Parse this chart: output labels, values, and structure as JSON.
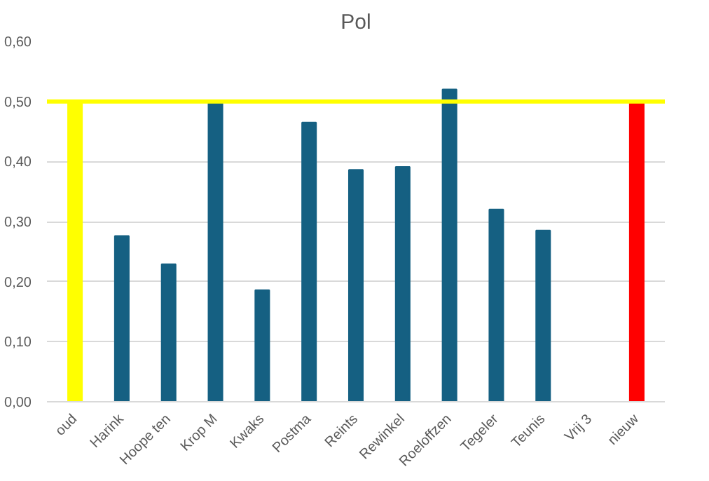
{
  "chart_data": {
    "type": "bar",
    "title": "Pol",
    "categories": [
      "oud",
      "Harink",
      "Hoope ten",
      "Krop M",
      "Kwaks",
      "Postma",
      "Reints",
      "Rewinkel",
      "Roeloffzen",
      "Tegeler",
      "Teunis",
      "Vrij 3",
      "nieuw"
    ],
    "series": [
      {
        "colors": [
          "#ffff00",
          "#156082",
          "#156082",
          "#156082",
          "#156082",
          "#156082",
          "#156082",
          "#156082",
          "#156082",
          "#156082",
          "#156082",
          "#156082",
          "#ff0000"
        ],
        "values": [
          0.5,
          0.276,
          0.229,
          0.497,
          0.186,
          0.465,
          0.386,
          0.391,
          0.52,
          0.32,
          0.285,
          null,
          0.5
        ]
      }
    ],
    "ref_lines": [
      {
        "axis": "y",
        "value": 0.5,
        "color": "#ffff00"
      }
    ],
    "ylim": [
      0,
      0.6
    ],
    "yticks": [
      {
        "value": 0,
        "label": "0,00"
      },
      {
        "value": 0.1,
        "label": "0,10"
      },
      {
        "value": 0.2,
        "label": "0,20"
      },
      {
        "value": 0.3,
        "label": "0,30"
      },
      {
        "value": 0.4,
        "label": "0,40"
      },
      {
        "value": 0.5,
        "label": "0,50"
      },
      {
        "value": 0.6,
        "label": "0,60"
      }
    ],
    "grid": "y"
  }
}
